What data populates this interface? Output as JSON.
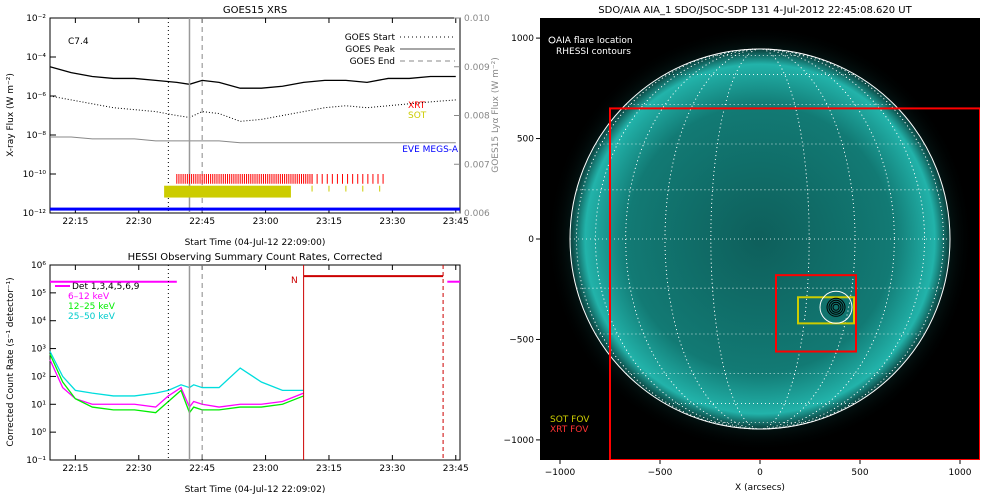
{
  "panels": {
    "goes": {
      "title": "GOES15 XRS",
      "flare_class": "C7.4",
      "ylabel_left": "X-ray Flux (W m⁻²)",
      "ylabel_right": "GOES15 Lyα Flux (W m⁻²)",
      "xlabel": "Start Time (04-Jul-12 22:09:00)",
      "legend": [
        "GOES Start",
        "GOES Peak",
        "GOES End"
      ],
      "instrument_labels": {
        "xrt": "XRT",
        "sot": "SOT",
        "eve": "EVE MEGS-A"
      }
    },
    "hessi": {
      "title": "HESSI Observing Summary Count Rates, Corrected",
      "ylabel": "Corrected Count Rate (s⁻¹ detector⁻¹)",
      "xlabel": "Start Time (04-Jul-12 22:09:02)",
      "legend": [
        "Det 1,3,4,5,6,9",
        "6–12 keV",
        "12–25 keV",
        "25–50 keV"
      ],
      "night_marker": "N"
    },
    "aia": {
      "title": "SDO/AIA AIA_1 SDO/JSOC-SDP 131  4-Jul-2012 22:45:08.620 UT",
      "legend_flare": "AIA flare location",
      "legend_rhessi": "RHESSI contours",
      "legend_sot": "SOT FOV",
      "legend_xrt": "XRT FOV",
      "xlabel": "X (arcsecs)"
    }
  },
  "colors": {
    "xrt": "#ff0000",
    "sot": "#cccc00",
    "eve": "#0000ff",
    "e6_12": "#ff00ff",
    "e12_25": "#00ee00",
    "e25_50": "#00dddd",
    "sun": "#1aa39a"
  },
  "chart_data": [
    {
      "type": "line",
      "title": "GOES15 XRS",
      "x_ticks": [
        "22:15",
        "22:30",
        "22:45",
        "23:00",
        "23:15",
        "23:30",
        "23:45"
      ],
      "y_ticks_left": [
        "10⁻¹²",
        "10⁻¹⁰",
        "10⁻⁸",
        "10⁻⁶",
        "10⁻⁴",
        "10⁻²"
      ],
      "y_ticks_right": [
        "0.006",
        "0.007",
        "0.008",
        "0.009",
        "0.010"
      ],
      "ylim_right": [
        0.006,
        0.01
      ],
      "y_scale": "log",
      "x_minutes": [
        0,
        5,
        10,
        15,
        20,
        25,
        30,
        33,
        36,
        40,
        45,
        50,
        55,
        60,
        65,
        70,
        75,
        80,
        85,
        90,
        96
      ],
      "series": [
        {
          "name": "long",
          "values": [
            -4.5,
            -4.8,
            -5.0,
            -5.1,
            -5.1,
            -5.2,
            -5.3,
            -5.4,
            -5.2,
            -5.3,
            -5.6,
            -5.6,
            -5.5,
            -5.3,
            -5.2,
            -5.2,
            -5.3,
            -5.1,
            -5.1,
            -5.0,
            -5.0
          ]
        },
        {
          "name": "short",
          "values": [
            -6.0,
            -6.2,
            -6.4,
            -6.6,
            -6.7,
            -6.8,
            -7.0,
            -7.1,
            -6.8,
            -6.9,
            -7.3,
            -7.2,
            -7.0,
            -6.8,
            -6.6,
            -6.5,
            -6.6,
            -6.5,
            -6.4,
            -6.3,
            -6.2
          ]
        },
        {
          "name": "lya",
          "values": [
            -8.1,
            -8.1,
            -8.2,
            -8.2,
            -8.2,
            -8.3,
            -8.3,
            -8.3,
            -8.3,
            -8.3,
            -8.4,
            -8.4,
            -8.4,
            -8.4,
            -8.4,
            -8.4,
            -8.4,
            -8.4,
            -8.4,
            -8.4,
            -8.4
          ]
        }
      ],
      "goes_start": 28,
      "goes_peak": 33,
      "goes_end": 36,
      "xrt_intervals": [
        [
          30,
          62
        ],
        [
          62,
          80
        ]
      ],
      "sot_intervals": [
        [
          27,
          57
        ]
      ],
      "eve_level": -11.8
    },
    {
      "type": "line",
      "title": "HESSI Observing Summary Count Rates, Corrected",
      "x_ticks": [
        "22:15",
        "22:30",
        "22:45",
        "23:00",
        "23:15",
        "23:30",
        "23:45"
      ],
      "y_ticks": [
        "10⁻¹",
        "10⁰",
        "10¹",
        "10²",
        "10³",
        "10⁴",
        "10⁵",
        "10⁶"
      ],
      "y_scale": "log",
      "x_minutes": [
        0,
        3,
        6,
        10,
        15,
        20,
        25,
        28,
        31,
        33,
        34,
        36,
        40,
        45,
        50,
        55,
        60
      ],
      "series": [
        {
          "name": "6–12 keV",
          "values": [
            2.6,
            1.6,
            1.2,
            1.0,
            1.0,
            1.0,
            0.9,
            1.3,
            1.6,
            0.9,
            1.1,
            1.0,
            0.9,
            1.0,
            1.0,
            1.1,
            1.4
          ]
        },
        {
          "name": "12–25 keV",
          "values": [
            2.8,
            1.8,
            1.2,
            0.9,
            0.8,
            0.8,
            0.7,
            1.1,
            1.5,
            0.7,
            0.9,
            0.8,
            0.8,
            0.9,
            0.9,
            1.0,
            1.3
          ]
        },
        {
          "name": "25–50 keV",
          "values": [
            2.9,
            2.0,
            1.5,
            1.4,
            1.3,
            1.3,
            1.4,
            1.5,
            1.7,
            1.6,
            1.7,
            1.6,
            1.6,
            2.3,
            1.8,
            1.5,
            1.5
          ]
        }
      ],
      "night_start": 60,
      "night_end": 96,
      "goes_start": 28,
      "goes_peak": 33,
      "goes_end": 36
    },
    {
      "type": "scatter",
      "title": "SDO/AIA AIA_1 SDO/JSOC-SDP 131  4-Jul-2012 22:45:08.620 UT",
      "xlabel": "X (arcsecs)",
      "x_ticks": [
        "−1000",
        "−500",
        "0",
        "500",
        "1000"
      ],
      "y_ticks": [
        "−1000",
        "−500",
        "0",
        "500",
        "1000"
      ],
      "xlim": [
        -1100,
        1100
      ],
      "ylim": [
        -1100,
        1100
      ],
      "solar_radius": 950,
      "flare_location": [
        380,
        -340
      ],
      "xrt_fov": [
        [
          -750,
          -1100
        ],
        [
          1100,
          650
        ]
      ],
      "xrt_small_fov": [
        [
          80,
          -560
        ],
        [
          480,
          -180
        ]
      ],
      "sot_fov": [
        [
          190,
          -420
        ],
        [
          470,
          -290
        ]
      ]
    }
  ]
}
